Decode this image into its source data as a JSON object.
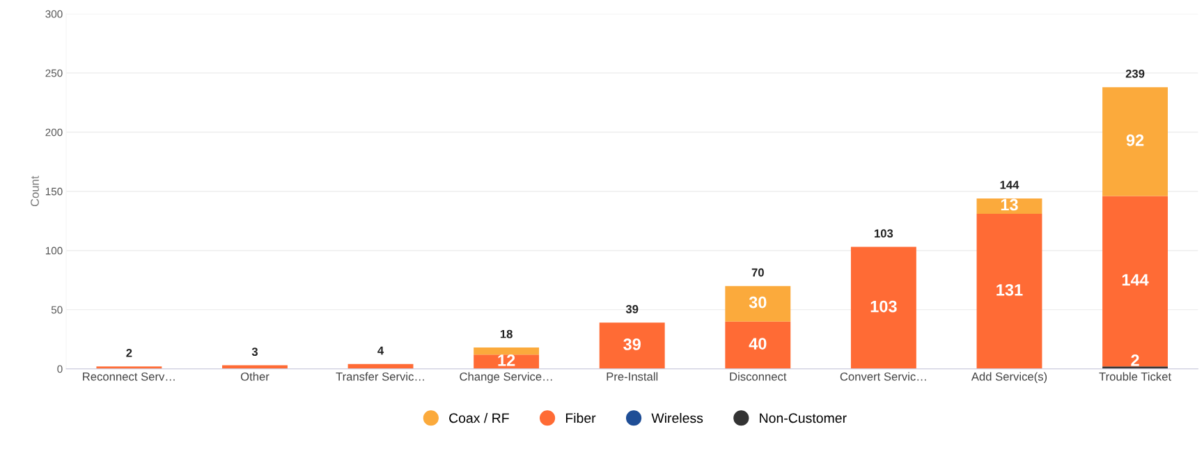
{
  "chart_data": {
    "type": "bar",
    "stacked": true,
    "ylabel": "Count",
    "categories": [
      "Reconnect Serv…",
      "Other",
      "Transfer Servic…",
      "Change Service…",
      "Pre-Install",
      "Disconnect",
      "Convert Servic…",
      "Add Service(s)",
      "Trouble Ticket"
    ],
    "series": [
      {
        "name": "Non-Customer",
        "color": "#333333",
        "values": [
          null,
          null,
          null,
          null,
          null,
          null,
          null,
          null,
          2
        ],
        "value_labels": [
          null,
          null,
          null,
          null,
          null,
          null,
          null,
          null,
          "2"
        ]
      },
      {
        "name": "Wireless",
        "color": "#1f4e96",
        "values": [
          null,
          null,
          null,
          null,
          null,
          null,
          null,
          null,
          null
        ]
      },
      {
        "name": "Fiber",
        "color": "#ff6b35",
        "values": [
          2,
          3,
          4,
          12,
          39,
          40,
          103,
          131,
          144
        ],
        "value_labels": [
          null,
          null,
          null,
          "12",
          "39",
          "40",
          "103",
          "131",
          "144"
        ]
      },
      {
        "name": "Coax / RF",
        "color": "#fbaa3c",
        "values": [
          null,
          null,
          null,
          6,
          null,
          30,
          null,
          13,
          92
        ],
        "value_labels": [
          null,
          null,
          null,
          null,
          null,
          "30",
          null,
          "13",
          "92"
        ]
      }
    ],
    "totals": [
      "2",
      "3",
      "4",
      "18",
      "39",
      "70",
      "103",
      "144",
      "239"
    ],
    "ylim": [
      0,
      300
    ],
    "yticks": [
      0,
      50,
      100,
      150,
      200,
      250,
      300
    ],
    "grid": "y",
    "legend": "bottom",
    "marker": "circle"
  }
}
